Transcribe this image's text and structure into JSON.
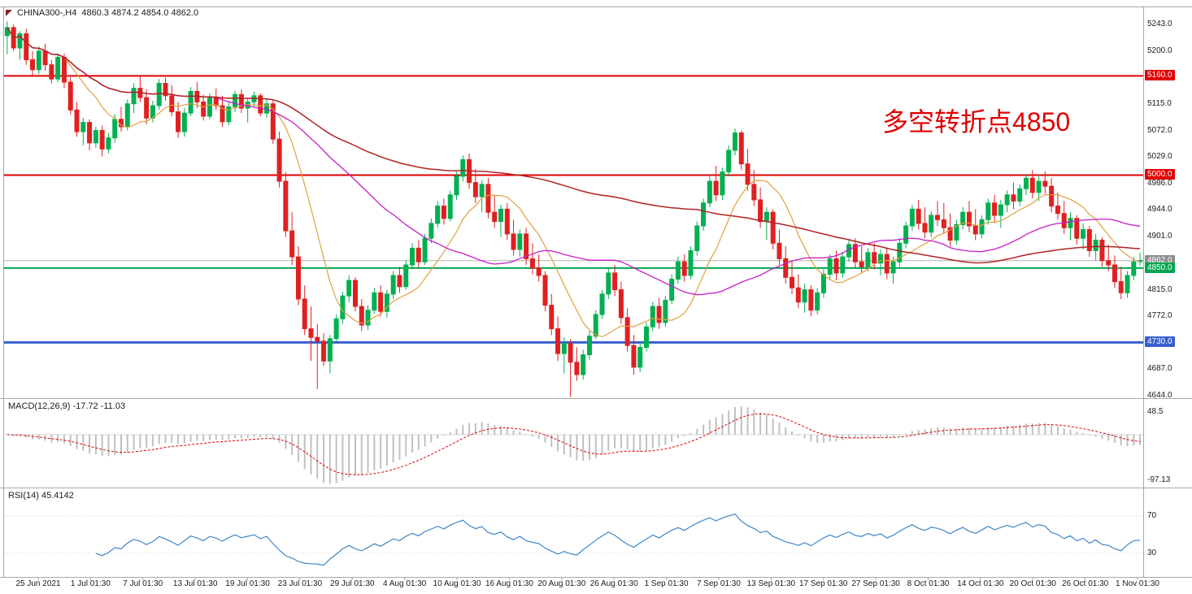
{
  "header": {
    "symbol": "CHINA300-,H4",
    "ohlc": "4860.3 4874.2 4854.0 4862.0",
    "marker_color": "#8b1f1f"
  },
  "annotation": {
    "text": "多空转折点4850",
    "color": "#e00000"
  },
  "price_axis": {
    "ticks": [
      {
        "text": "5243.0",
        "value": 5243
      },
      {
        "text": "5200.0",
        "value": 5200
      },
      {
        "text": "5115.0",
        "value": 5115
      },
      {
        "text": "5072.0",
        "value": 5072
      },
      {
        "text": "5029.0",
        "value": 5029
      },
      {
        "text": "4986.0",
        "value": 4986
      },
      {
        "text": "4944.0",
        "value": 4944
      },
      {
        "text": "4901.0",
        "value": 4901
      },
      {
        "text": "4815.0",
        "value": 4815
      },
      {
        "text": "4772.0",
        "value": 4772
      },
      {
        "text": "4687.0",
        "value": 4687
      },
      {
        "text": "4644.0",
        "value": 4644
      }
    ],
    "badges": [
      {
        "text": "5160.0",
        "value": 5160,
        "bg": "#e00000"
      },
      {
        "text": "5000.0",
        "value": 5000,
        "bg": "#e00000"
      },
      {
        "text": "4862.0",
        "value": 4862,
        "bg": "#8c8c8c"
      },
      {
        "text": "4850.0",
        "value": 4850,
        "bg": "#00a650"
      },
      {
        "text": "4730.0",
        "value": 4730,
        "bg": "#3a5fcd"
      }
    ]
  },
  "time_axis": {
    "labels": [
      "25 Jun 2021",
      "1 Jul 01:30",
      "7 Jul 01:30",
      "13 Jul 01:30",
      "19 Jul 01:30",
      "23 Jul 01:30",
      "29 Jul 01:30",
      "4 Aug 01:30",
      "10 Aug 01:30",
      "16 Aug 01:30",
      "20 Aug 01:30",
      "26 Aug 01:30",
      "1 Sep 01:30",
      "7 Sep 01:30",
      "13 Sep 01:30",
      "17 Sep 01:30",
      "27 Sep 01:30",
      "8 Oct 01:30",
      "14 Oct 01:30",
      "20 Oct 01:30",
      "26 Oct 01:30",
      "1 Nov 01:30"
    ]
  },
  "chart_data": {
    "type": "candlestick",
    "title": "CHINA300-,H4 4860.3 4874.2 4854.0 4862.0",
    "y_range": [
      4640,
      5272
    ],
    "up_color": "#00b050",
    "down_color": "#e02020",
    "border_color": "#a8a8a8",
    "horizontal_lines": [
      {
        "value": 5160,
        "color": "#e00000",
        "width": 2
      },
      {
        "value": 5000,
        "color": "#e00000",
        "width": 2
      },
      {
        "value": 4850,
        "color": "#00a650",
        "width": 2
      },
      {
        "value": 4730,
        "color": "#3a5fcd",
        "width": 3
      },
      {
        "value": 4862,
        "color": "#b4b4b4",
        "width": 1
      }
    ],
    "moving_averages": [
      {
        "name": "ma-fast",
        "period": 10,
        "color": "#e0a040",
        "width": 1.2
      },
      {
        "name": "ma-medium",
        "period": 34,
        "color": "#c81ec8",
        "width": 1.3
      },
      {
        "name": "ma-slow",
        "period": 110,
        "color": "#b22222",
        "width": 1.5
      }
    ],
    "indicators": [
      {
        "type": "macd",
        "label": "MACD(12,26,9) -17.72 -11.03",
        "params": [
          12,
          26,
          9
        ],
        "values_text": [
          "-17.72",
          "-11.03"
        ],
        "range": [
          -113,
          78
        ],
        "axis_labels": [
          {
            "text": "48.5",
            "value": 48.5
          },
          {
            "text": "-97.13",
            "value": -97.13
          }
        ],
        "histogram_color": "#c0c0c0",
        "signal_color": "#e00000"
      },
      {
        "type": "rsi",
        "label": "RSI(14) 45.4142",
        "period": 14,
        "value_text": "45.4142",
        "range": [
          5,
          100
        ],
        "axis_labels": [
          {
            "text": "70",
            "value": 70
          },
          {
            "text": "30",
            "value": 30
          }
        ],
        "line_color": "#3e86c6",
        "level_color": "#c8c8c8"
      }
    ],
    "candles": [
      [
        5225,
        5248,
        5195,
        5238
      ],
      [
        5238,
        5243,
        5200,
        5205
      ],
      [
        5205,
        5232,
        5186,
        5228
      ],
      [
        5228,
        5236,
        5178,
        5186
      ],
      [
        5186,
        5200,
        5160,
        5170
      ],
      [
        5170,
        5208,
        5163,
        5200
      ],
      [
        5200,
        5212,
        5168,
        5178
      ],
      [
        5178,
        5186,
        5148,
        5155
      ],
      [
        5155,
        5196,
        5150,
        5190
      ],
      [
        5190,
        5196,
        5140,
        5150
      ],
      [
        5150,
        5158,
        5098,
        5105
      ],
      [
        5105,
        5118,
        5062,
        5070
      ],
      [
        5070,
        5092,
        5048,
        5085
      ],
      [
        5085,
        5090,
        5040,
        5052
      ],
      [
        5052,
        5078,
        5044,
        5072
      ],
      [
        5072,
        5080,
        5030,
        5042
      ],
      [
        5042,
        5068,
        5035,
        5060
      ],
      [
        5060,
        5098,
        5052,
        5090
      ],
      [
        5090,
        5110,
        5070,
        5078
      ],
      [
        5078,
        5122,
        5072,
        5115
      ],
      [
        5115,
        5148,
        5100,
        5140
      ],
      [
        5140,
        5160,
        5118,
        5125
      ],
      [
        5125,
        5138,
        5082,
        5092
      ],
      [
        5092,
        5120,
        5085,
        5112
      ],
      [
        5112,
        5155,
        5105,
        5148
      ],
      [
        5148,
        5157,
        5120,
        5128
      ],
      [
        5128,
        5145,
        5095,
        5102
      ],
      [
        5102,
        5118,
        5060,
        5070
      ],
      [
        5070,
        5108,
        5062,
        5100
      ],
      [
        5100,
        5142,
        5095,
        5135
      ],
      [
        5135,
        5150,
        5108,
        5118
      ],
      [
        5118,
        5130,
        5088,
        5095
      ],
      [
        5095,
        5132,
        5090,
        5126
      ],
      [
        5126,
        5140,
        5105,
        5112
      ],
      [
        5112,
        5128,
        5078,
        5086
      ],
      [
        5086,
        5118,
        5080,
        5110
      ],
      [
        5110,
        5136,
        5102,
        5130
      ],
      [
        5130,
        5138,
        5100,
        5108
      ],
      [
        5108,
        5125,
        5085,
        5118
      ],
      [
        5118,
        5135,
        5110,
        5128
      ],
      [
        5128,
        5132,
        5095,
        5100
      ],
      [
        5100,
        5122,
        5092,
        5115
      ],
      [
        5115,
        5120,
        5050,
        5058
      ],
      [
        5058,
        5070,
        4980,
        4990
      ],
      [
        4990,
        5005,
        4900,
        4910
      ],
      [
        4910,
        4940,
        4855,
        4868
      ],
      [
        4868,
        4885,
        4790,
        4800
      ],
      [
        4800,
        4822,
        4742,
        4752
      ],
      [
        4752,
        4788,
        4700,
        4738
      ],
      [
        4738,
        4760,
        4655,
        4732
      ],
      [
        4732,
        4745,
        4692,
        4700
      ],
      [
        4700,
        4742,
        4680,
        4736
      ],
      [
        4736,
        4775,
        4730,
        4768
      ],
      [
        4768,
        4812,
        4760,
        4805
      ],
      [
        4805,
        4838,
        4795,
        4830
      ],
      [
        4830,
        4835,
        4780,
        4788
      ],
      [
        4788,
        4800,
        4748,
        4758
      ],
      [
        4758,
        4790,
        4750,
        4782
      ],
      [
        4782,
        4818,
        4776,
        4810
      ],
      [
        4810,
        4822,
        4772,
        4780
      ],
      [
        4780,
        4815,
        4770,
        4808
      ],
      [
        4808,
        4845,
        4800,
        4838
      ],
      [
        4838,
        4852,
        4810,
        4820
      ],
      [
        4820,
        4862,
        4815,
        4855
      ],
      [
        4855,
        4890,
        4848,
        4882
      ],
      [
        4882,
        4895,
        4850,
        4860
      ],
      [
        4860,
        4905,
        4855,
        4898
      ],
      [
        4898,
        4930,
        4890,
        4922
      ],
      [
        4922,
        4958,
        4915,
        4950
      ],
      [
        4950,
        4962,
        4920,
        4930
      ],
      [
        4930,
        4975,
        4925,
        4968
      ],
      [
        4968,
        5005,
        4960,
        4998
      ],
      [
        4998,
        5032,
        4990,
        5025
      ],
      [
        5025,
        5035,
        4978,
        4988
      ],
      [
        4988,
        5010,
        4955,
        4965
      ],
      [
        4965,
        4992,
        4940,
        4985
      ],
      [
        4985,
        4995,
        4930,
        4940
      ],
      [
        4940,
        4968,
        4915,
        4925
      ],
      [
        4925,
        4952,
        4900,
        4945
      ],
      [
        4945,
        4955,
        4895,
        4905
      ],
      [
        4905,
        4928,
        4870,
        4880
      ],
      [
        4880,
        4912,
        4868,
        4905
      ],
      [
        4905,
        4915,
        4855,
        4865
      ],
      [
        4865,
        4890,
        4840,
        4850
      ],
      [
        4850,
        4872,
        4828,
        4838
      ],
      [
        4838,
        4845,
        4780,
        4790
      ],
      [
        4790,
        4808,
        4742,
        4752
      ],
      [
        4752,
        4772,
        4700,
        4712
      ],
      [
        4712,
        4738,
        4680,
        4728
      ],
      [
        4728,
        4735,
        4642,
        4698
      ],
      [
        4698,
        4722,
        4668,
        4678
      ],
      [
        4678,
        4718,
        4670,
        4710
      ],
      [
        4710,
        4748,
        4702,
        4740
      ],
      [
        4740,
        4782,
        4735,
        4775
      ],
      [
        4775,
        4815,
        4768,
        4808
      ],
      [
        4808,
        4850,
        4800,
        4842
      ],
      [
        4842,
        4855,
        4805,
        4815
      ],
      [
        4815,
        4828,
        4760,
        4770
      ],
      [
        4770,
        4785,
        4715,
        4725
      ],
      [
        4725,
        4742,
        4678,
        4690
      ],
      [
        4690,
        4730,
        4682,
        4722
      ],
      [
        4722,
        4762,
        4715,
        4755
      ],
      [
        4755,
        4795,
        4748,
        4788
      ],
      [
        4788,
        4802,
        4752,
        4762
      ],
      [
        4762,
        4805,
        4755,
        4798
      ],
      [
        4798,
        4840,
        4792,
        4832
      ],
      [
        4832,
        4868,
        4825,
        4860
      ],
      [
        4860,
        4872,
        4828,
        4838
      ],
      [
        4838,
        4885,
        4832,
        4878
      ],
      [
        4878,
        4925,
        4870,
        4918
      ],
      [
        4918,
        4962,
        4910,
        4955
      ],
      [
        4955,
        4998,
        4948,
        4990
      ],
      [
        4990,
        5015,
        4958,
        4968
      ],
      [
        4968,
        5012,
        4960,
        5005
      ],
      [
        5005,
        5048,
        4998,
        5040
      ],
      [
        5040,
        5075,
        5032,
        5068
      ],
      [
        5068,
        5072,
        5008,
        5018
      ],
      [
        5018,
        5042,
        4975,
        4985
      ],
      [
        4985,
        5008,
        4950,
        4960
      ],
      [
        4960,
        4980,
        4915,
        4925
      ],
      [
        4925,
        4948,
        4895,
        4940
      ],
      [
        4940,
        4945,
        4880,
        4890
      ],
      [
        4890,
        4912,
        4855,
        4865
      ],
      [
        4865,
        4885,
        4825,
        4835
      ],
      [
        4835,
        4862,
        4808,
        4818
      ],
      [
        4818,
        4840,
        4785,
        4795
      ],
      [
        4795,
        4825,
        4778,
        4815
      ],
      [
        4815,
        4822,
        4772,
        4782
      ],
      [
        4782,
        4818,
        4775,
        4810
      ],
      [
        4810,
        4848,
        4802,
        4840
      ],
      [
        4840,
        4872,
        4832,
        4865
      ],
      [
        4865,
        4878,
        4830,
        4842
      ],
      [
        4842,
        4876,
        4835,
        4868
      ],
      [
        4868,
        4895,
        4860,
        4888
      ],
      [
        4888,
        4898,
        4850,
        4860
      ],
      [
        4860,
        4885,
        4842,
        4852
      ],
      [
        4852,
        4882,
        4845,
        4875
      ],
      [
        4875,
        4890,
        4848,
        4858
      ],
      [
        4858,
        4880,
        4838,
        4872
      ],
      [
        4872,
        4882,
        4832,
        4842
      ],
      [
        4842,
        4868,
        4825,
        4860
      ],
      [
        4860,
        4898,
        4852,
        4890
      ],
      [
        4890,
        4925,
        4882,
        4918
      ],
      [
        4918,
        4952,
        4910,
        4945
      ],
      [
        4945,
        4960,
        4912,
        4922
      ],
      [
        4922,
        4948,
        4898,
        4908
      ],
      [
        4908,
        4942,
        4900,
        4935
      ],
      [
        4935,
        4958,
        4918,
        4928
      ],
      [
        4928,
        4955,
        4905,
        4915
      ],
      [
        4915,
        4938,
        4885,
        4895
      ],
      [
        4895,
        4928,
        4888,
        4920
      ],
      [
        4920,
        4948,
        4912,
        4940
      ],
      [
        4940,
        4958,
        4908,
        4918
      ],
      [
        4918,
        4945,
        4895,
        4905
      ],
      [
        4905,
        4935,
        4898,
        4928
      ],
      [
        4928,
        4962,
        4920,
        4955
      ],
      [
        4955,
        4968,
        4925,
        4935
      ],
      [
        4935,
        4960,
        4915,
        4952
      ],
      [
        4952,
        4975,
        4940,
        4968
      ],
      [
        4968,
        4988,
        4945,
        4958
      ],
      [
        4958,
        4985,
        4950,
        4978
      ],
      [
        4978,
        5002,
        4968,
        4995
      ],
      [
        4995,
        5008,
        4962,
        4972
      ],
      [
        4972,
        4998,
        4958,
        4990
      ],
      [
        4990,
        5006,
        4970,
        4982
      ],
      [
        4982,
        4995,
        4940,
        4950
      ],
      [
        4950,
        4972,
        4928,
        4938
      ],
      [
        4938,
        4958,
        4905,
        4915
      ],
      [
        4915,
        4940,
        4895,
        4930
      ],
      [
        4930,
        4935,
        4888,
        4898
      ],
      [
        4898,
        4922,
        4880,
        4912
      ],
      [
        4912,
        4918,
        4868,
        4878
      ],
      [
        4878,
        4905,
        4862,
        4895
      ],
      [
        4895,
        4900,
        4852,
        4862
      ],
      [
        4862,
        4888,
        4845,
        4855
      ],
      [
        4855,
        4870,
        4818,
        4828
      ],
      [
        4828,
        4852,
        4800,
        4810
      ],
      [
        4810,
        4845,
        4802,
        4838
      ],
      [
        4838,
        4868,
        4830,
        4860
      ],
      [
        4860.3,
        4874.2,
        4854.0,
        4862.0
      ]
    ]
  }
}
